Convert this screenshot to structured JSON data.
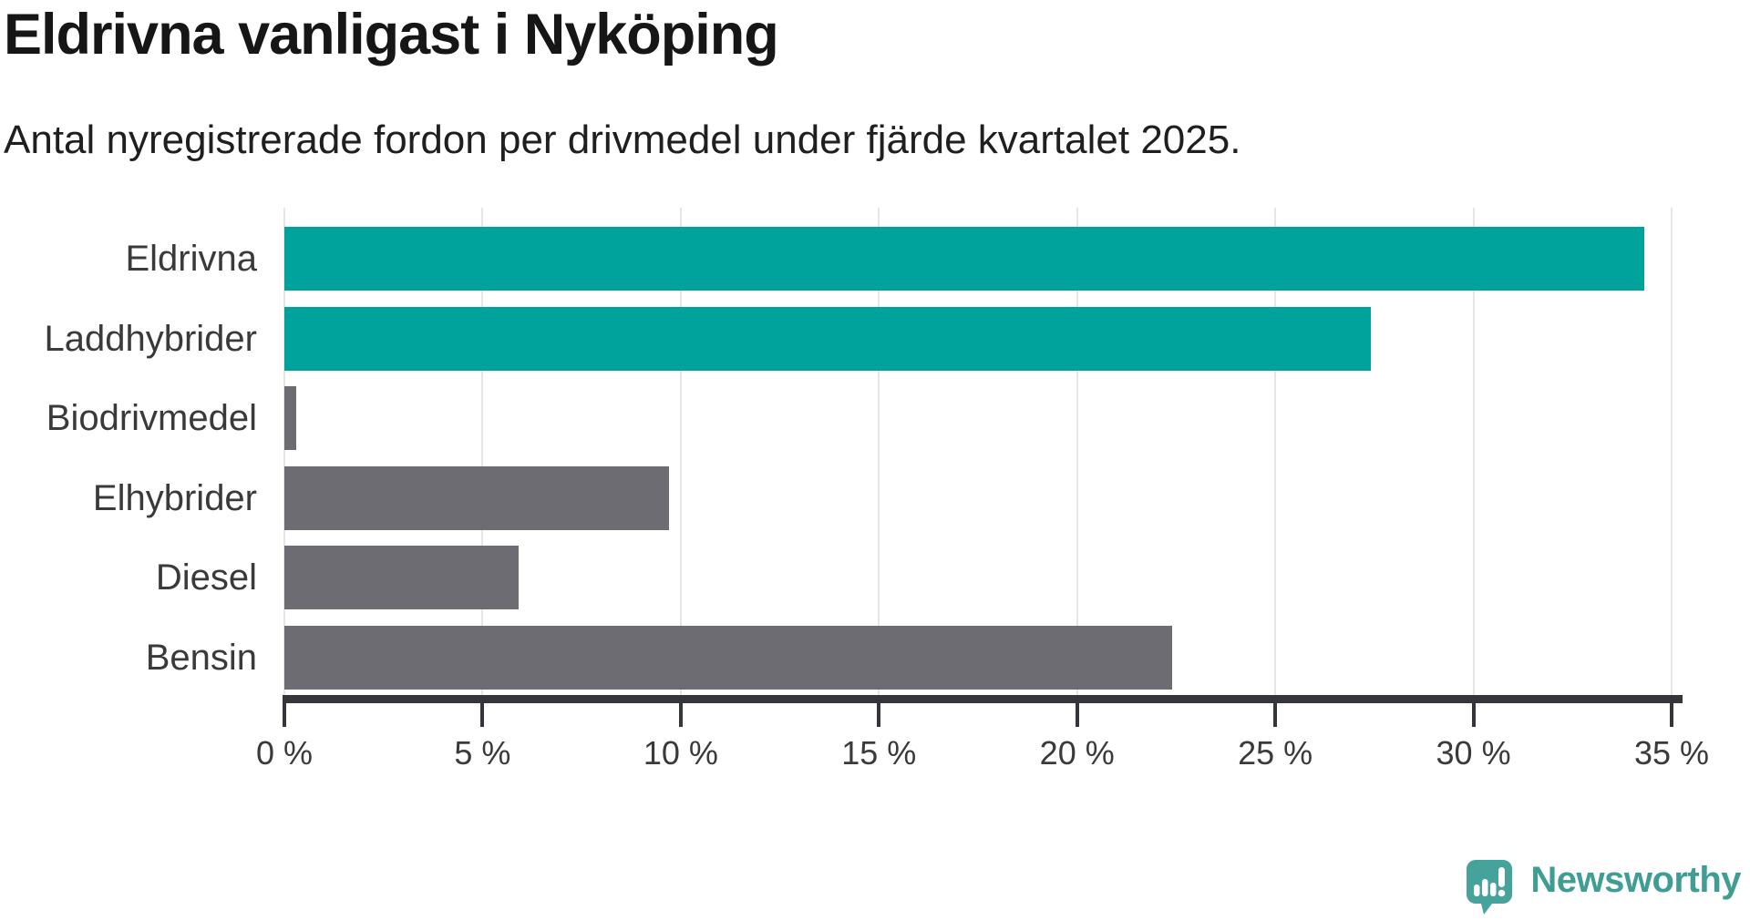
{
  "header": {
    "title": "Eldrivna vanligast i Nyköping",
    "subtitle": "Antal nyregistrerade fordon per drivmedel under fjärde kvartalet 2025."
  },
  "chart_data": {
    "type": "bar",
    "orientation": "horizontal",
    "title": "Eldrivna vanligast i Nyköping",
    "subtitle": "Antal nyregistrerade fordon per drivmedel under fjärde kvartalet 2025.",
    "categories": [
      "Eldrivna",
      "Laddhybrider",
      "Biodrivmedel",
      "Elhybrider",
      "Diesel",
      "Bensin"
    ],
    "values": [
      34.3,
      27.4,
      0.3,
      9.7,
      5.9,
      22.4
    ],
    "unit": "%",
    "highlighted": [
      true,
      true,
      false,
      false,
      false,
      false
    ],
    "xlabel": "",
    "ylabel": "",
    "xlim": [
      0,
      35
    ],
    "x_tick_values": [
      0,
      5,
      10,
      15,
      20,
      25,
      30,
      35
    ],
    "x_tick_labels": [
      "0 %",
      "5 %",
      "10 %",
      "15 %",
      "20 %",
      "25 %",
      "30 %",
      "35 %"
    ],
    "grid": true,
    "legend": false,
    "colors": {
      "highlight": "#00a39b",
      "default": "#6c6c72",
      "axis": "#35353c",
      "gridline": "#e6e6e6",
      "tick_label": "#3a3a3a",
      "category_label": "#3a3a3a"
    }
  },
  "footer": {
    "brand": "Newsworthy",
    "brand_color": "#3f9d94",
    "logo_icon": "newsworthy-speech-bubble-chart-icon",
    "logo_icon_color": "#46a39b"
  }
}
